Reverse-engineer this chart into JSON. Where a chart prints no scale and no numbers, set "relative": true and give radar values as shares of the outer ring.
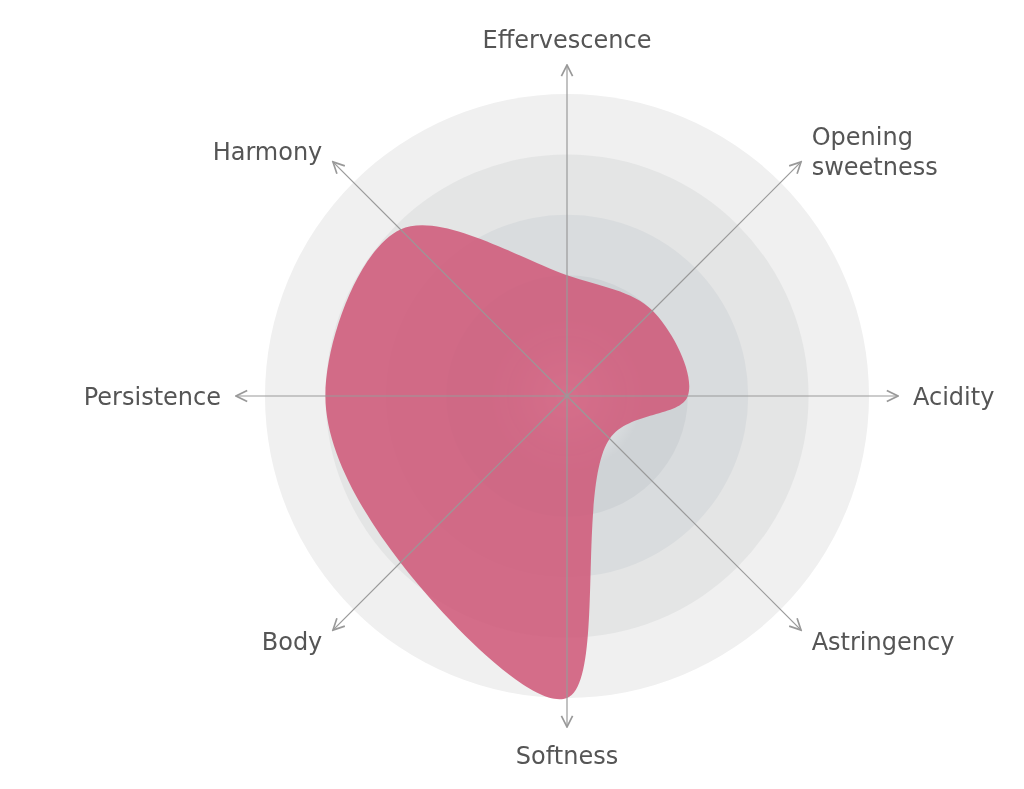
{
  "chart_data": {
    "type": "radar",
    "relative": true,
    "grid": true,
    "categories": [
      "Effervescence",
      "Opening sweetness",
      "Acidity",
      "Astringency",
      "Softness",
      "Body",
      "Persistence",
      "Harmony"
    ],
    "series": [
      {
        "color": "#cf5a7a",
        "values": [
          0.4,
          0.4,
          0.4,
          0.2,
          1.0,
          0.78,
          0.8,
          0.78
        ]
      }
    ]
  }
}
